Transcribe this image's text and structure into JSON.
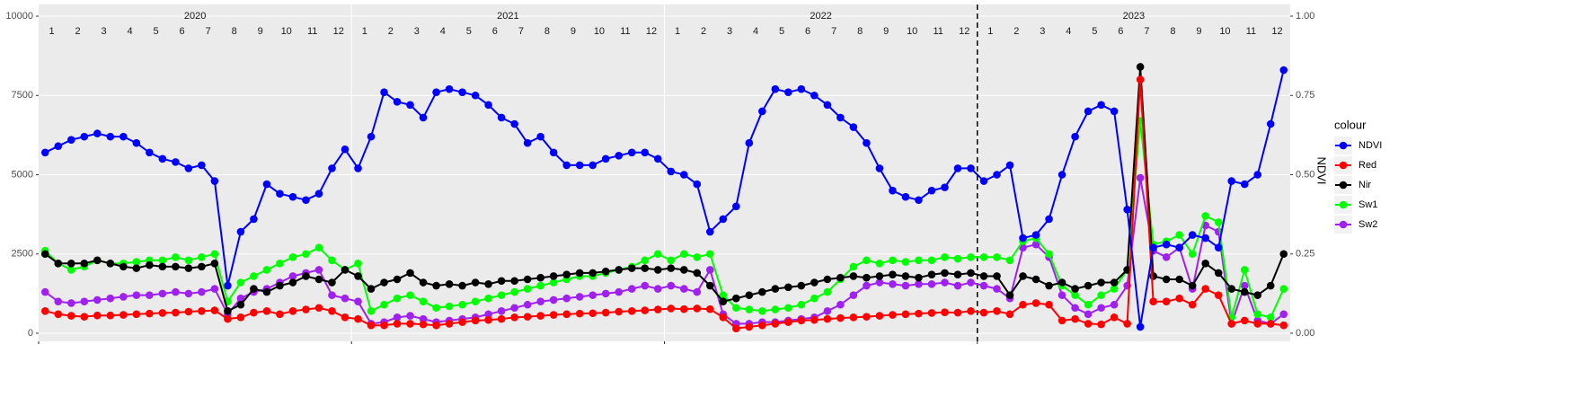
{
  "chart_data": {
    "type": "line",
    "years": [
      "2020",
      "2021",
      "2022",
      "2023"
    ],
    "months": [
      "1",
      "2",
      "3",
      "4",
      "5",
      "6",
      "7",
      "8",
      "9",
      "10",
      "11",
      "12"
    ],
    "x": [
      "2020-01",
      "2020-01",
      "2020-02",
      "2020-02",
      "2020-03",
      "2020-03",
      "2020-04",
      "2020-04",
      "2020-05",
      "2020-05",
      "2020-06",
      "2020-06",
      "2020-07",
      "2020-07",
      "2020-08",
      "2020-08",
      "2020-09",
      "2020-09",
      "2020-10",
      "2020-10",
      "2020-11",
      "2020-11",
      "2020-12",
      "2020-12",
      "2021-01",
      "2021-01",
      "2021-02",
      "2021-02",
      "2021-03",
      "2021-03",
      "2021-04",
      "2021-04",
      "2021-05",
      "2021-05",
      "2021-06",
      "2021-06",
      "2021-07",
      "2021-07",
      "2021-08",
      "2021-08",
      "2021-09",
      "2021-09",
      "2021-10",
      "2021-10",
      "2021-11",
      "2021-11",
      "2021-12",
      "2021-12",
      "2022-01",
      "2022-01",
      "2022-02",
      "2022-02",
      "2022-03",
      "2022-03",
      "2022-04",
      "2022-04",
      "2022-05",
      "2022-05",
      "2022-06",
      "2022-06",
      "2022-07",
      "2022-07",
      "2022-08",
      "2022-08",
      "2022-09",
      "2022-09",
      "2022-10",
      "2022-10",
      "2022-11",
      "2022-11",
      "2022-12",
      "2022-12",
      "2023-01",
      "2023-01",
      "2023-02",
      "2023-02",
      "2023-03",
      "2023-03",
      "2023-04",
      "2023-04",
      "2023-05",
      "2023-05",
      "2023-06",
      "2023-06",
      "2023-07",
      "2023-07",
      "2023-08",
      "2023-08",
      "2023-09",
      "2023-09",
      "2023-10",
      "2023-10",
      "2023-11",
      "2023-11",
      "2023-12",
      "2023-12"
    ],
    "vline": "2023-01",
    "ylim": [
      0,
      10000
    ],
    "yticks": [
      0,
      2500,
      5000,
      7500,
      10000
    ],
    "y2label": "NDVI",
    "y2lim": [
      0,
      1
    ],
    "y2ticks": [
      {
        "value": 0,
        "label": "0.00"
      },
      {
        "value": 0.25,
        "label": "0.25"
      },
      {
        "value": 0.5,
        "label": "0.50"
      },
      {
        "value": 0.75,
        "label": "0.75"
      },
      {
        "value": 1,
        "label": "1.00"
      }
    ],
    "grid": true,
    "legend_title": "colour",
    "series": [
      {
        "name": "NDVI",
        "color": "#0000FF",
        "axis": "y2",
        "values": [
          0.57,
          0.59,
          0.61,
          0.62,
          0.63,
          0.62,
          0.62,
          0.6,
          0.57,
          0.55,
          0.54,
          0.52,
          0.53,
          0.48,
          0.15,
          0.32,
          0.36,
          0.47,
          0.44,
          0.43,
          0.42,
          0.44,
          0.52,
          0.58,
          0.52,
          0.62,
          0.76,
          0.73,
          0.72,
          0.68,
          0.76,
          0.77,
          0.76,
          0.75,
          0.72,
          0.68,
          0.66,
          0.6,
          0.62,
          0.57,
          0.53,
          0.53,
          0.53,
          0.55,
          0.56,
          0.57,
          0.57,
          0.55,
          0.51,
          0.5,
          0.47,
          0.32,
          0.36,
          0.4,
          0.6,
          0.7,
          0.77,
          0.76,
          0.77,
          0.75,
          0.72,
          0.68,
          0.65,
          0.6,
          0.52,
          0.45,
          0.43,
          0.42,
          0.45,
          0.46,
          0.52,
          0.52,
          0.48,
          0.5,
          0.53,
          0.3,
          0.31,
          0.36,
          0.5,
          0.62,
          0.7,
          0.72,
          0.7,
          0.39,
          0.02,
          0.27,
          0.28,
          0.27,
          0.31,
          0.3,
          0.27,
          0.48,
          0.47,
          0.5,
          0.66,
          0.83
        ]
      },
      {
        "name": "Red",
        "color": "#FF0000",
        "values": [
          700,
          600,
          550,
          520,
          560,
          560,
          580,
          600,
          620,
          640,
          650,
          680,
          700,
          720,
          450,
          500,
          650,
          700,
          600,
          700,
          750,
          800,
          700,
          500,
          450,
          250,
          250,
          300,
          300,
          280,
          250,
          300,
          350,
          400,
          420,
          450,
          500,
          520,
          550,
          580,
          600,
          620,
          630,
          650,
          680,
          700,
          720,
          750,
          780,
          760,
          780,
          760,
          500,
          150,
          200,
          250,
          300,
          350,
          400,
          420,
          450,
          480,
          500,
          520,
          550,
          580,
          600,
          620,
          640,
          660,
          650,
          700,
          650,
          700,
          600,
          900,
          950,
          900,
          400,
          450,
          300,
          280,
          500,
          300,
          8000,
          1000,
          1000,
          1100,
          900,
          1400,
          1200,
          300,
          400,
          300,
          300,
          250
        ]
      },
      {
        "name": "Nir",
        "color": "#000000",
        "values": [
          2500,
          2200,
          2200,
          2200,
          2300,
          2200,
          2100,
          2050,
          2150,
          2100,
          2100,
          2050,
          2100,
          2200,
          700,
          900,
          1400,
          1300,
          1500,
          1600,
          1800,
          1700,
          1600,
          2000,
          1800,
          1400,
          1600,
          1700,
          1900,
          1600,
          1500,
          1550,
          1500,
          1600,
          1550,
          1650,
          1650,
          1700,
          1750,
          1800,
          1850,
          1900,
          1900,
          1950,
          2000,
          2050,
          2050,
          2000,
          2050,
          2000,
          1900,
          1500,
          1000,
          1100,
          1200,
          1300,
          1400,
          1450,
          1500,
          1600,
          1700,
          1750,
          1800,
          1750,
          1800,
          1850,
          1800,
          1750,
          1850,
          1900,
          1850,
          1900,
          1800,
          1800,
          1200,
          1800,
          1700,
          1500,
          1600,
          1400,
          1500,
          1600,
          1600,
          2000,
          8400,
          1800,
          1700,
          1700,
          1500,
          2200,
          1900,
          1400,
          1300,
          1200,
          1500,
          2500
        ]
      },
      {
        "name": "Sw1",
        "color": "#00FF00",
        "values": [
          2600,
          2200,
          2000,
          2100,
          2300,
          2200,
          2200,
          2250,
          2300,
          2300,
          2400,
          2300,
          2400,
          2500,
          1000,
          1600,
          1800,
          2000,
          2200,
          2400,
          2500,
          2700,
          2300,
          2000,
          2200,
          700,
          900,
          1100,
          1200,
          1000,
          800,
          850,
          900,
          1000,
          1100,
          1200,
          1300,
          1400,
          1500,
          1600,
          1700,
          1800,
          1800,
          1900,
          2000,
          2100,
          2300,
          2500,
          2300,
          2500,
          2400,
          2500,
          1200,
          800,
          750,
          700,
          750,
          800,
          900,
          1100,
          1300,
          1700,
          2100,
          2300,
          2200,
          2300,
          2250,
          2300,
          2300,
          2400,
          2350,
          2400,
          2400,
          2400,
          2300,
          2900,
          3000,
          2500,
          1500,
          1200,
          900,
          1200,
          1400,
          2000,
          6700,
          2800,
          2900,
          3100,
          2500,
          3700,
          3500,
          500,
          2000,
          600,
          500,
          1400
        ]
      },
      {
        "name": "Sw2",
        "color": "#A020F0",
        "values": [
          1300,
          1000,
          950,
          1000,
          1050,
          1100,
          1150,
          1200,
          1200,
          1250,
          1300,
          1250,
          1300,
          1400,
          600,
          1100,
          1300,
          1400,
          1600,
          1800,
          1900,
          2000,
          1200,
          1100,
          1000,
          300,
          350,
          500,
          550,
          450,
          350,
          400,
          450,
          500,
          600,
          700,
          800,
          900,
          1000,
          1050,
          1100,
          1150,
          1200,
          1250,
          1300,
          1400,
          1500,
          1400,
          1500,
          1400,
          1300,
          2000,
          600,
          300,
          300,
          350,
          350,
          400,
          450,
          500,
          700,
          900,
          1200,
          1500,
          1600,
          1550,
          1500,
          1550,
          1550,
          1600,
          1500,
          1600,
          1500,
          1400,
          1100,
          2700,
          2800,
          2400,
          1200,
          800,
          600,
          800,
          900,
          1500,
          4900,
          2600,
          2400,
          2700,
          1400,
          3400,
          3200,
          300,
          1500,
          400,
          300,
          600
        ]
      }
    ]
  }
}
